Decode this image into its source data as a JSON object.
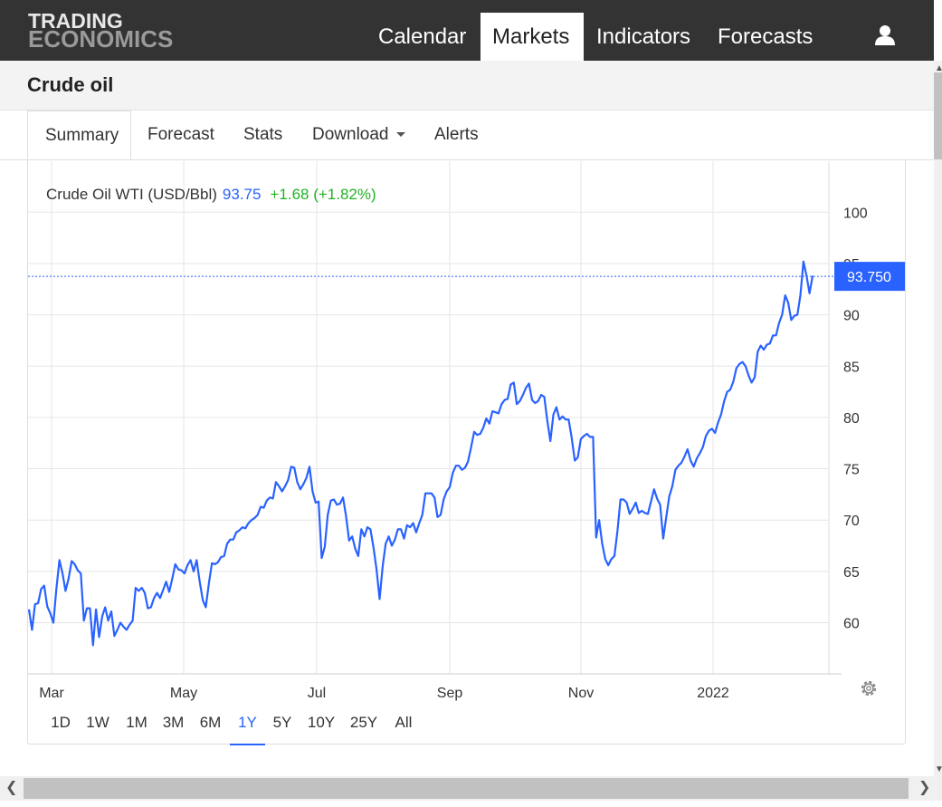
{
  "brand": {
    "line1": "TRADING",
    "line2": "ECONOMICS"
  },
  "nav": {
    "items": [
      {
        "label": "Calendar"
      },
      {
        "label": "Markets"
      },
      {
        "label": "Indicators"
      },
      {
        "label": "Forecasts"
      }
    ],
    "active": "Markets"
  },
  "page": {
    "title": "Crude oil"
  },
  "tabs": [
    {
      "label": "Summary"
    },
    {
      "label": "Forecast"
    },
    {
      "label": "Stats"
    },
    {
      "label": "Download"
    },
    {
      "label": "Alerts"
    }
  ],
  "quote": {
    "name": "Crude Oil WTI (USD/Bbl)",
    "price": "93.75",
    "change": "+1.68 (+1.82%)",
    "last_label": "93.750"
  },
  "ranges": [
    {
      "label": "1D"
    },
    {
      "label": "1W"
    },
    {
      "label": "1M"
    },
    {
      "label": "3M"
    },
    {
      "label": "6M"
    },
    {
      "label": "1Y"
    },
    {
      "label": "5Y"
    },
    {
      "label": "10Y"
    },
    {
      "label": "25Y"
    },
    {
      "label": "All"
    }
  ],
  "active_range": "1Y",
  "colors": {
    "line": "#2962ff",
    "positive": "#22b322",
    "label_bg": "#2962ff",
    "nav_bg": "#333333"
  },
  "chart_data": {
    "type": "line",
    "series": [
      {
        "values": [
          61.3,
          59.3,
          61.8,
          61.9,
          63.3,
          63.6,
          61.6,
          60.9,
          60.0,
          63.3,
          66.1,
          64.8,
          63.1,
          64.3,
          66.0,
          65.7,
          65.1,
          64.8,
          60.2,
          61.4,
          61.4,
          57.8,
          61.3,
          58.6,
          60.6,
          61.5,
          60.2,
          61.1,
          58.7,
          59.3,
          60.0,
          59.6,
          59.3,
          59.8,
          60.2,
          63.4,
          63.1,
          63.4,
          62.9,
          61.4,
          61.5,
          62.4,
          62.9,
          62.4,
          63.2,
          64.0,
          63.0,
          64.3,
          65.7,
          65.2,
          65.1,
          64.8,
          65.6,
          66.1,
          65.0,
          66.1,
          64.0,
          62.2,
          61.5,
          63.8,
          65.8,
          65.7,
          65.9,
          66.4,
          66.5,
          67.7,
          68.1,
          68.1,
          68.8,
          69.0,
          69.3,
          69.2,
          69.7,
          70.0,
          70.2,
          70.5,
          71.3,
          71.2,
          71.9,
          72.2,
          72.1,
          73.7,
          73.3,
          72.8,
          73.3,
          73.9,
          75.2,
          75.1,
          73.7,
          73.0,
          73.5,
          74.1,
          75.2,
          72.8,
          71.7,
          71.8,
          66.3,
          67.4,
          70.5,
          71.9,
          72.0,
          71.5,
          71.6,
          72.2,
          70.4,
          68.0,
          68.4,
          67.2,
          66.5,
          69.1,
          68.4,
          69.3,
          69.1,
          67.3,
          65.2,
          62.3,
          65.5,
          67.7,
          68.4,
          67.5,
          68.1,
          69.1,
          69.1,
          68.2,
          69.5,
          69.3,
          69.7,
          68.8,
          69.7,
          70.5,
          72.6,
          72.6,
          72.6,
          72.2,
          70.3,
          70.5,
          72.0,
          72.8,
          73.2,
          74.6,
          75.3,
          75.3,
          74.9,
          75.1,
          75.7,
          77.1,
          78.6,
          78.3,
          78.4,
          79.0,
          79.9,
          79.4,
          80.6,
          80.5,
          80.4,
          81.3,
          81.7,
          81.8,
          83.2,
          83.4,
          81.3,
          81.6,
          82.2,
          82.9,
          83.3,
          81.7,
          81.4,
          81.6,
          82.2,
          82.0,
          79.7,
          77.7,
          80.3,
          81.0,
          79.8,
          80.1,
          79.8,
          79.8,
          78.0,
          75.8,
          76.1,
          77.9,
          78.2,
          78.4,
          78.1,
          78.1,
          68.3,
          70.0,
          67.7,
          66.2,
          65.6,
          66.2,
          66.5,
          68.9,
          72.0,
          72.0,
          71.7,
          70.6,
          71.1,
          71.7,
          70.7,
          70.9,
          70.7,
          70.6,
          71.8,
          73.0,
          72.1,
          71.5,
          68.2,
          70.3,
          72.3,
          73.3,
          74.9,
          75.3,
          75.6,
          76.2,
          76.9,
          75.8,
          75.2,
          76.0,
          76.5,
          77.1,
          78.2,
          78.7,
          78.9,
          78.5,
          79.5,
          80.3,
          81.6,
          82.5,
          82.7,
          83.5,
          84.8,
          85.2,
          85.4,
          85.0,
          84.1,
          83.4,
          83.9,
          86.4,
          87.0,
          86.6,
          87.1,
          87.2,
          88.0,
          88.0,
          89.2,
          90.0,
          91.9,
          91.2,
          89.5,
          89.9,
          90.0,
          91.9,
          95.2,
          93.8,
          92.1,
          93.8
        ]
      }
    ],
    "x_ticks": [
      "Mar",
      "May",
      "Jul",
      "Sep",
      "Nov",
      "2022"
    ],
    "y_ticks": [
      60,
      65,
      70,
      75,
      80,
      85,
      90,
      95,
      100
    ],
    "ylim": [
      55,
      105
    ],
    "grid": true,
    "last_value": 93.75
  }
}
